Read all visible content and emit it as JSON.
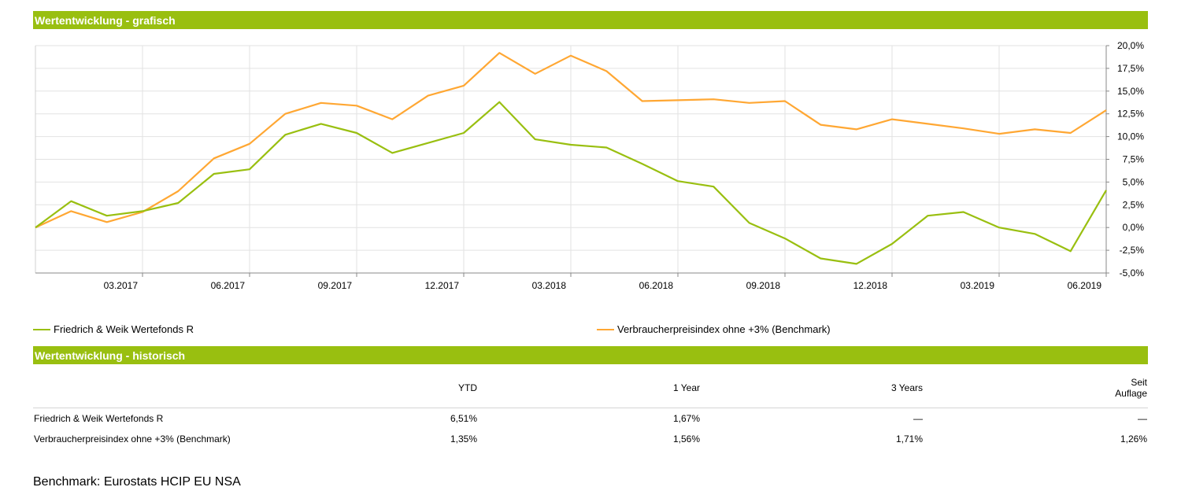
{
  "sections": {
    "chart_title": "Wertentwicklung - grafisch",
    "history_title": "Wertentwicklung - historisch"
  },
  "colors": {
    "accent": "#99bf10",
    "fund": "#99bf10",
    "benchmark": "#ffa733"
  },
  "chart_data": {
    "type": "line",
    "x": [
      "12.2016",
      "01.2017",
      "02.2017",
      "03.2017",
      "04.2017",
      "05.2017",
      "06.2017",
      "07.2017",
      "08.2017",
      "09.2017",
      "10.2017",
      "11.2017",
      "12.2017",
      "01.2018",
      "02.2018",
      "03.2018",
      "04.2018",
      "05.2018",
      "06.2018",
      "07.2018",
      "08.2018",
      "09.2018",
      "10.2018",
      "11.2018",
      "12.2018",
      "01.2019",
      "02.2019",
      "03.2019",
      "04.2019",
      "05.2019",
      "06.2019"
    ],
    "xticks": [
      "03.2017",
      "06.2017",
      "09.2017",
      "12.2017",
      "03.2018",
      "06.2018",
      "09.2018",
      "12.2018",
      "03.2019",
      "06.2019"
    ],
    "yticks": [
      "20,0%",
      "17,5%",
      "15,0%",
      "12,5%",
      "10,0%",
      "7,5%",
      "5,0%",
      "2,5%",
      "0,0%",
      "-2,5%",
      "-5,0%"
    ],
    "ylim": [
      -5,
      20
    ],
    "grid": true,
    "legend_position": "bottom",
    "series": [
      {
        "name": "Friedrich & Weik Wertefonds R",
        "values": [
          0.0,
          2.9,
          1.3,
          1.8,
          2.7,
          5.9,
          6.4,
          10.2,
          11.4,
          10.4,
          8.2,
          9.3,
          10.4,
          13.8,
          9.7,
          9.1,
          8.8,
          7.0,
          5.1,
          4.5,
          0.5,
          -1.2,
          -3.4,
          -4.0,
          -1.8,
          1.3,
          1.7,
          0.0,
          -0.7,
          -2.6,
          4.1
        ]
      },
      {
        "name": "Verbraucherpreisindex ohne +3% (Benchmark)",
        "values": [
          0.0,
          1.8,
          0.6,
          1.7,
          4.0,
          7.6,
          9.2,
          12.5,
          13.7,
          13.4,
          11.9,
          14.5,
          15.6,
          19.2,
          16.9,
          18.9,
          17.2,
          13.9,
          14.0,
          14.1,
          13.7,
          13.9,
          11.3,
          10.8,
          11.9,
          11.4,
          10.9,
          10.3,
          10.8,
          10.4,
          12.9
        ]
      }
    ]
  },
  "legend": {
    "fund": "Friedrich & Weik Wertefonds R",
    "benchmark": "Verbraucherpreisindex ohne +3% (Benchmark)"
  },
  "table": {
    "headers": {
      "name": "",
      "ytd": "YTD",
      "y1": "1 Year",
      "y3": "3 Years",
      "seit_line1": "Seit",
      "seit_line2": "Auflage"
    },
    "rows": [
      {
        "name": "Friedrich & Weik Wertefonds R",
        "ytd": "6,51%",
        "y1": "1,67%",
        "y3": "—",
        "seit": "—"
      },
      {
        "name": "Verbraucherpreisindex ohne +3% (Benchmark)",
        "ytd": "1,35%",
        "y1": "1,56%",
        "y3": "1,71%",
        "seit": "1,26%"
      }
    ]
  },
  "footnote": "Benchmark: Eurostats HCIP EU NSA"
}
